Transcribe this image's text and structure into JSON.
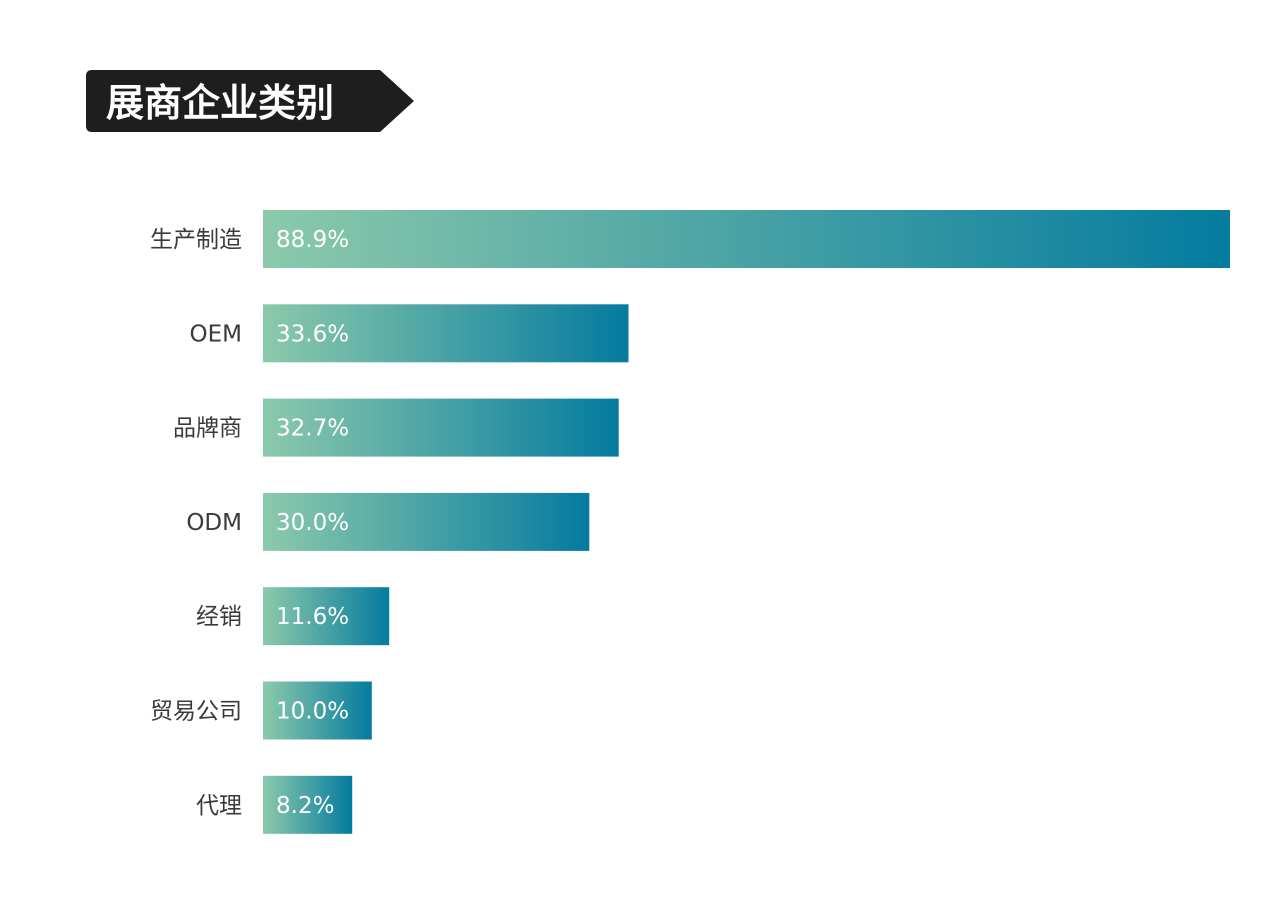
{
  "chart_data": {
    "type": "bar",
    "orientation": "horizontal",
    "title": "展商企业类别",
    "categories": [
      "生产制造",
      "OEM",
      "品牌商",
      "ODM",
      "经销",
      "贸易公司",
      "代理"
    ],
    "values": [
      88.9,
      33.6,
      32.7,
      30.0,
      11.6,
      10.0,
      8.2
    ],
    "value_labels": [
      "88.9%",
      "33.6%",
      "32.7%",
      "30.0%",
      "11.6%",
      "10.0%",
      "8.2%"
    ],
    "unit": "%",
    "xlim": [
      0,
      88.9
    ],
    "grid": false,
    "legend": "none",
    "colors": {
      "title_bg": "#1e1e1e",
      "title_text": "#ffffff",
      "bar_start": "#8cc9ab",
      "bar_end": "#047b9f",
      "category_text": "#3a3a3a",
      "value_text": "#ffffff"
    }
  }
}
